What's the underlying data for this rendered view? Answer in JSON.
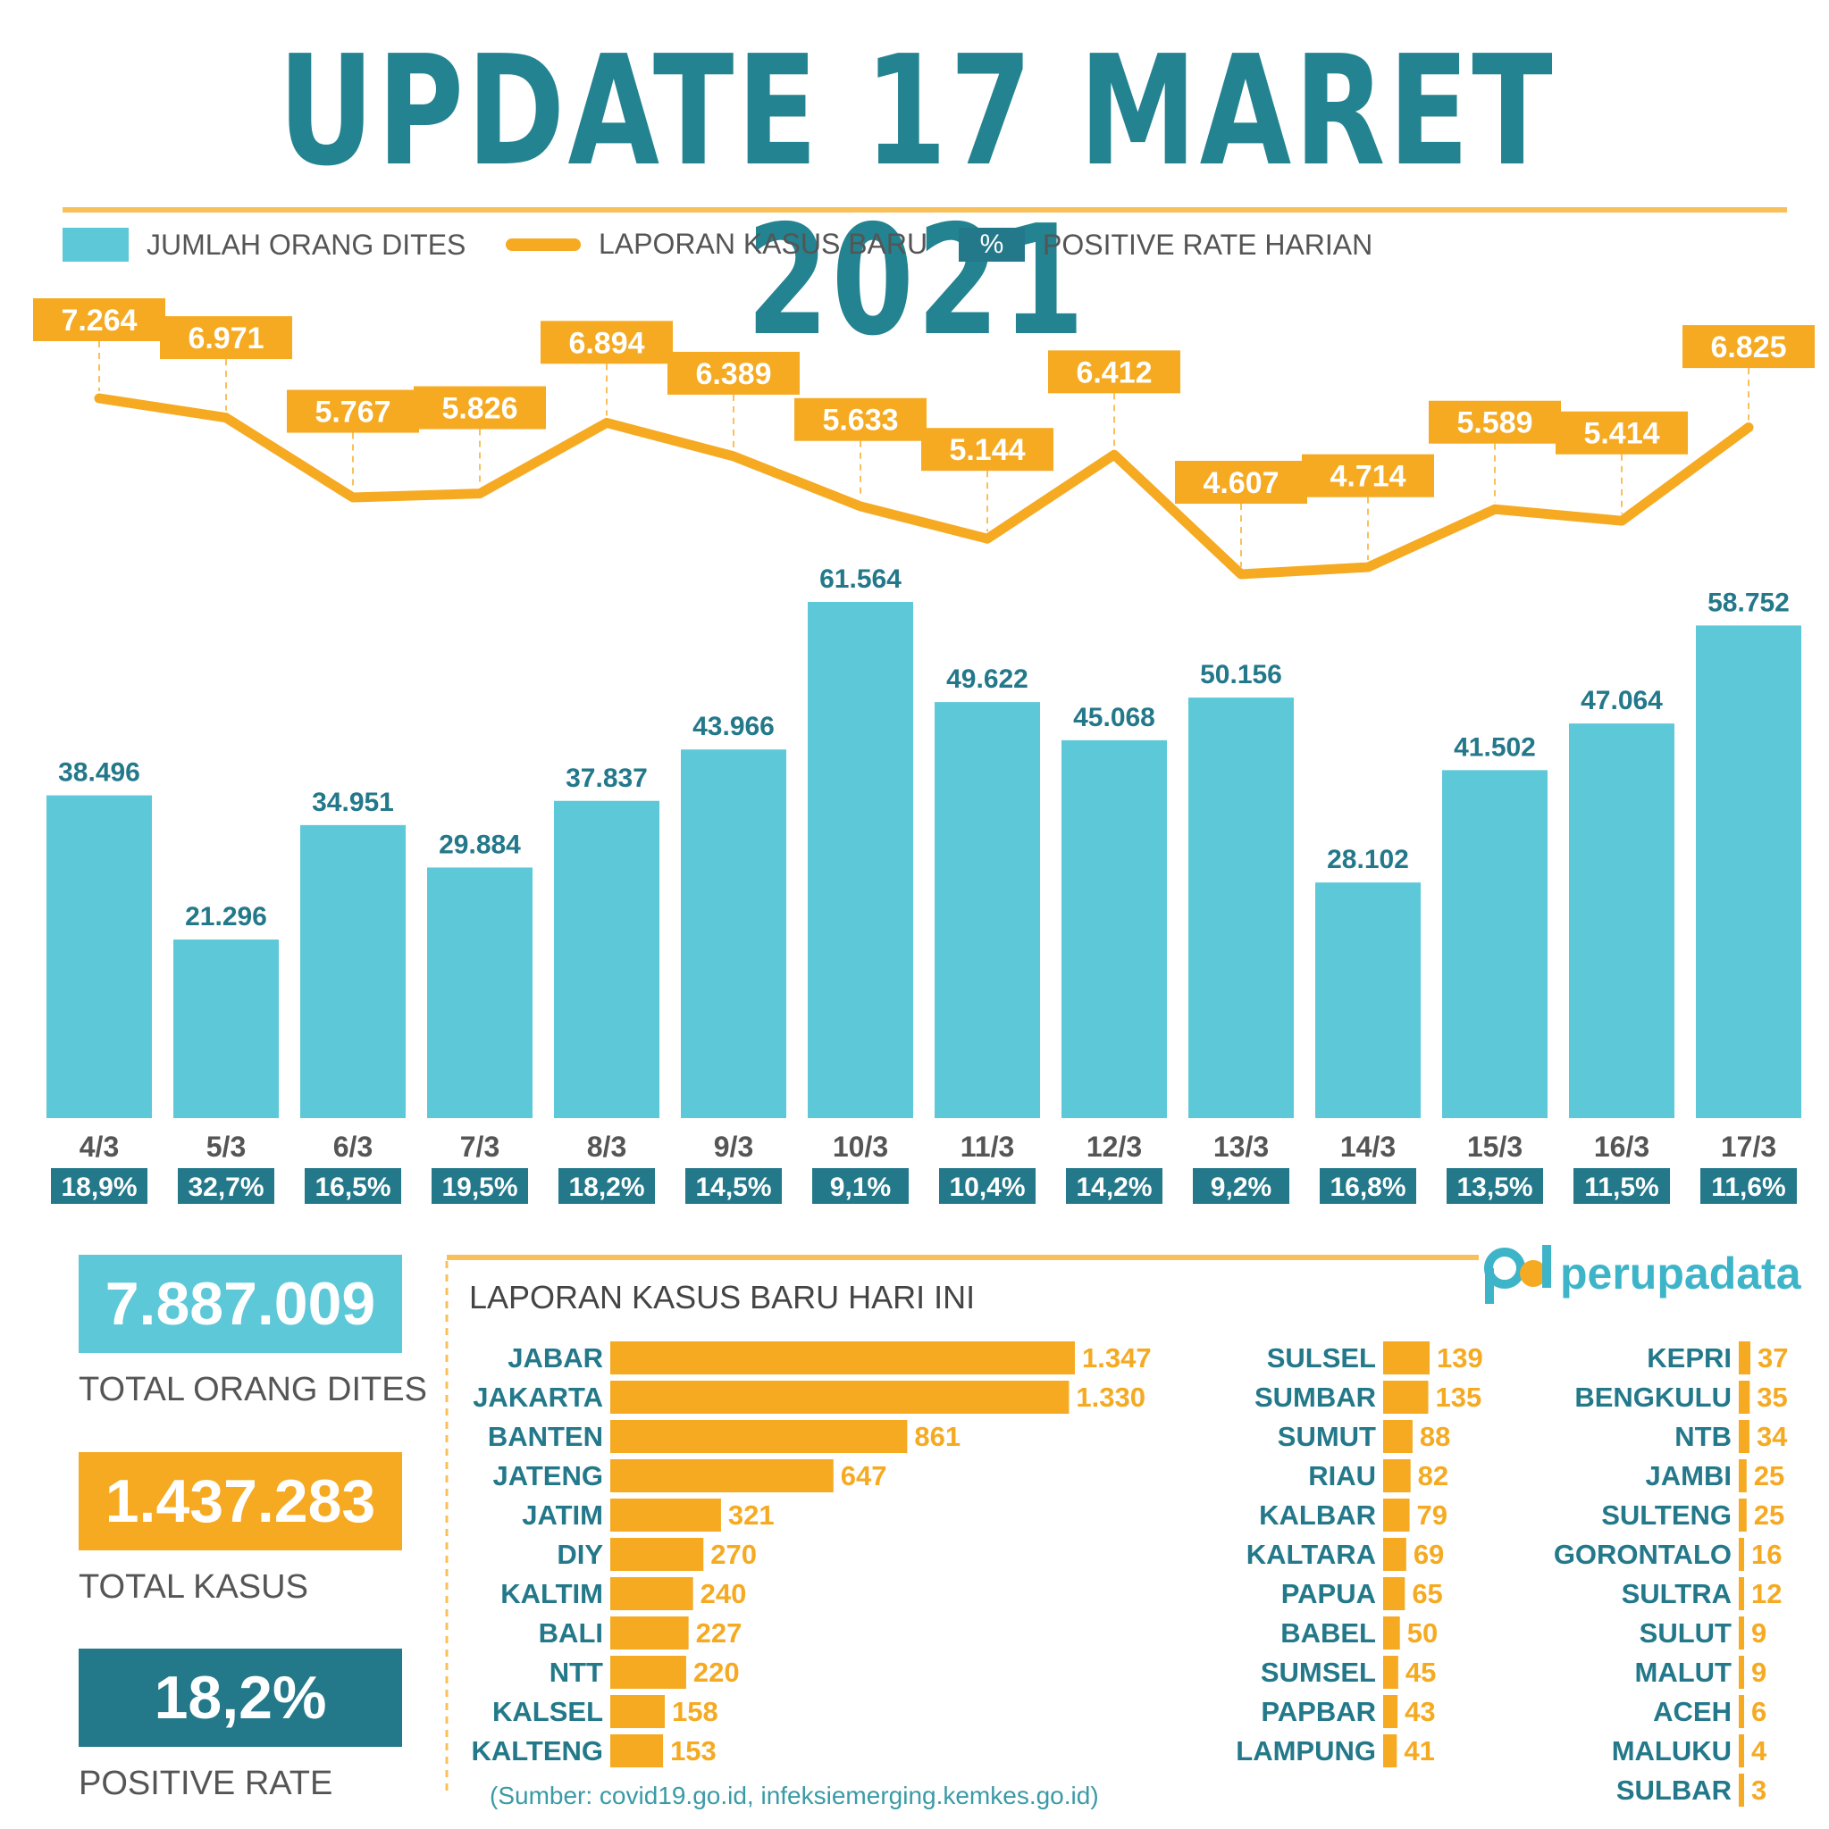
{
  "title": "UPDATE 17 MARET 2021",
  "legend": {
    "tests": "JUMLAH ORANG DITES",
    "cases": "LAPORAN KASUS BARU",
    "pct_symbol": "%",
    "rate": "POSITIVE RATE HARIAN"
  },
  "colors": {
    "teal_light": "#5DC8D8",
    "teal_dark": "#23788A",
    "orange": "#F5AA22",
    "title": "#238390"
  },
  "chart_data": [
    {
      "type": "bar",
      "categories": [
        "4/3",
        "5/3",
        "6/3",
        "7/3",
        "8/3",
        "9/3",
        "10/3",
        "11/3",
        "12/3",
        "13/3",
        "14/3",
        "15/3",
        "16/3",
        "17/3"
      ],
      "series": [
        {
          "name": "JUMLAH ORANG DITES",
          "values": [
            38496,
            21296,
            34951,
            29884,
            37837,
            43966,
            61564,
            49622,
            45068,
            50156,
            28102,
            41502,
            47064,
            58752
          ],
          "labels": [
            "38.496",
            "21.296",
            "34.951",
            "29.884",
            "37.837",
            "43.966",
            "61.564",
            "49.622",
            "45.068",
            "50.156",
            "28.102",
            "41.502",
            "47.064",
            "58.752"
          ]
        },
        {
          "name": "LAPORAN KASUS BARU",
          "values": [
            7264,
            6971,
            5767,
            5826,
            6894,
            6389,
            5633,
            5144,
            6412,
            4607,
            4714,
            5589,
            5414,
            6825
          ],
          "labels": [
            "7.264",
            "6.971",
            "5.767",
            "5.826",
            "6.894",
            "6.389",
            "5.633",
            "5.144",
            "6.412",
            "4.607",
            "4.714",
            "5.589",
            "5.414",
            "6.825"
          ]
        },
        {
          "name": "POSITIVE RATE HARIAN",
          "values": [
            18.9,
            32.7,
            16.5,
            19.5,
            18.2,
            14.5,
            9.1,
            10.4,
            14.2,
            9.2,
            16.8,
            13.5,
            11.5,
            11.6
          ],
          "labels": [
            "18,9%",
            "32,7%",
            "16,5%",
            "19,5%",
            "18,2%",
            "14,5%",
            "9,1%",
            "10,4%",
            "14,2%",
            "9,2%",
            "16,8%",
            "13,5%",
            "11,5%",
            "11,6%"
          ]
        }
      ]
    },
    {
      "type": "bar",
      "title": "LAPORAN KASUS BARU HARI INI",
      "orientation": "horizontal",
      "categories": [
        "JABAR",
        "JAKARTA",
        "BANTEN",
        "JATENG",
        "JATIM",
        "DIY",
        "KALTIM",
        "BALI",
        "NTT",
        "KALSEL",
        "KALTENG",
        "SULSEL",
        "SUMBAR",
        "SUMUT",
        "RIAU",
        "KALBAR",
        "KALTARA",
        "PAPUA",
        "BABEL",
        "SUMSEL",
        "PAPBAR",
        "LAMPUNG",
        "KEPRI",
        "BENGKULU",
        "NTB",
        "JAMBI",
        "SULTENG",
        "GORONTALO",
        "SULTRA",
        "SULUT",
        "MALUT",
        "ACEH",
        "MALUKU",
        "SULBAR"
      ],
      "values": [
        1347,
        1330,
        861,
        647,
        321,
        270,
        240,
        227,
        220,
        158,
        153,
        139,
        135,
        88,
        82,
        79,
        69,
        65,
        50,
        45,
        43,
        41,
        37,
        35,
        34,
        25,
        25,
        16,
        12,
        9,
        9,
        6,
        4,
        3
      ],
      "labels": [
        "1.347",
        "1.330",
        "861",
        "647",
        "321",
        "270",
        "240",
        "227",
        "220",
        "158",
        "153",
        "139",
        "135",
        "88",
        "82",
        "79",
        "69",
        "65",
        "50",
        "45",
        "43",
        "41",
        "37",
        "35",
        "34",
        "25",
        "25",
        "16",
        "12",
        "9",
        "9",
        "6",
        "4",
        "3"
      ]
    }
  ],
  "kpis": {
    "tests_value": "7.887.009",
    "tests_label": "TOTAL ORANG DITES",
    "cases_value": "1.437.283",
    "cases_label": "TOTAL KASUS",
    "rate_value": "18,2%",
    "rate_label": "POSITIVE RATE"
  },
  "logo": {
    "mark": "pd",
    "name": "perupadata"
  },
  "source": "(Sumber: covid19.go.id, infeksiemerging.kemkes.go.id)"
}
